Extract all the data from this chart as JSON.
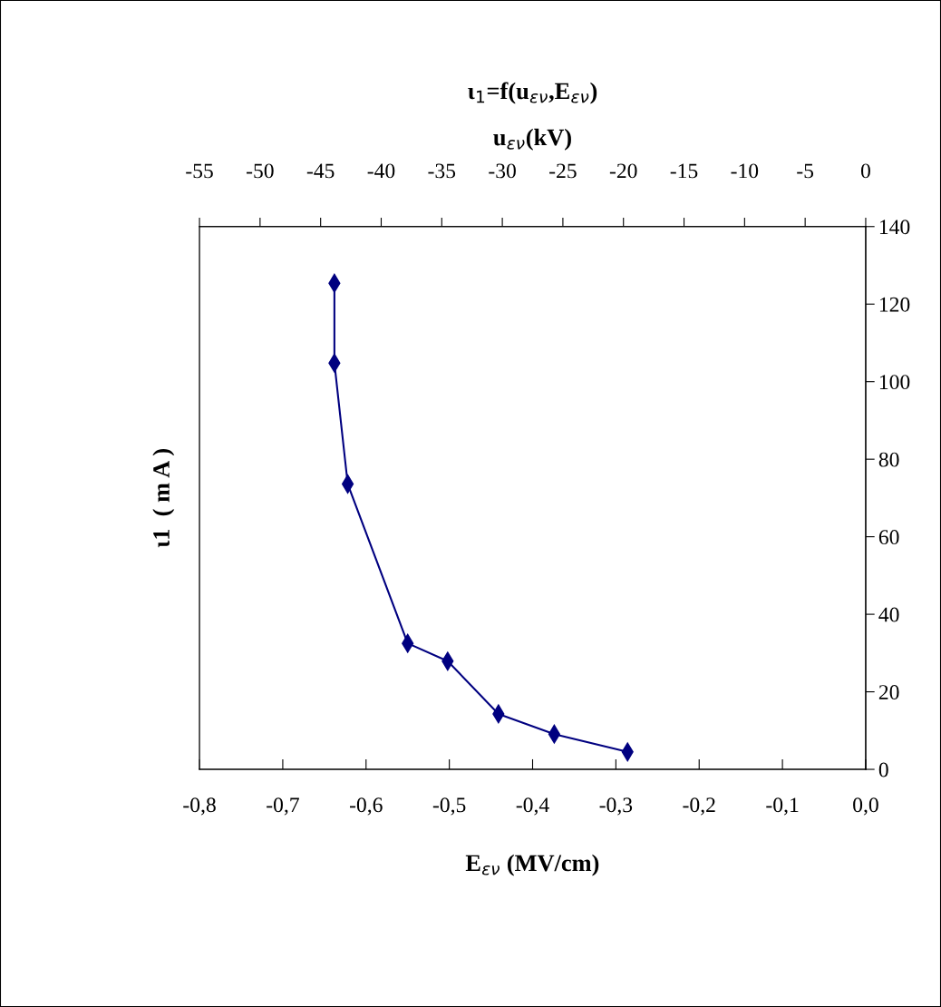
{
  "chart_data": {
    "type": "line",
    "title": "ι$_{1}$=f(u$_{εν}$,E$_{εν}$)",
    "x2label": "u$_{εν}$(kV)",
    "xlabel": "E$_{εν}$ (MV/cm)",
    "ylabel": "ι1  ( m A )",
    "x": [
      -0.638,
      -0.638,
      -0.622,
      -0.55,
      -0.502,
      -0.441,
      -0.374,
      -0.286
    ],
    "series": [
      {
        "color": "#000080",
        "values": [
          125.4,
          104.8,
          73.6,
          32.5,
          27.9,
          14.3,
          9.1,
          4.5
        ]
      }
    ],
    "xlim": [
      -0.8,
      0.0
    ],
    "xticks": [
      {
        "value": -0.8,
        "label": "-0,8"
      },
      {
        "value": -0.7,
        "label": "-0,7"
      },
      {
        "value": -0.6,
        "label": "-0,6"
      },
      {
        "value": -0.5,
        "label": "-0,5"
      },
      {
        "value": -0.4,
        "label": "-0,4"
      },
      {
        "value": -0.3,
        "label": "-0,3"
      },
      {
        "value": -0.2,
        "label": "-0,2"
      },
      {
        "value": -0.1,
        "label": "-0,1"
      },
      {
        "value": 0.0,
        "label": "0,0"
      }
    ],
    "x2lim": [
      -55,
      0
    ],
    "x2ticks": [
      -55,
      -50,
      -45,
      -40,
      -35,
      -30,
      -25,
      -20,
      -15,
      -10,
      -5,
      0
    ],
    "ylim": [
      0,
      140
    ],
    "yticks": [
      0,
      20,
      40,
      60,
      80,
      100,
      120,
      140
    ],
    "grid": false,
    "legend": false,
    "marker": "diamond",
    "line_style": "solid"
  }
}
